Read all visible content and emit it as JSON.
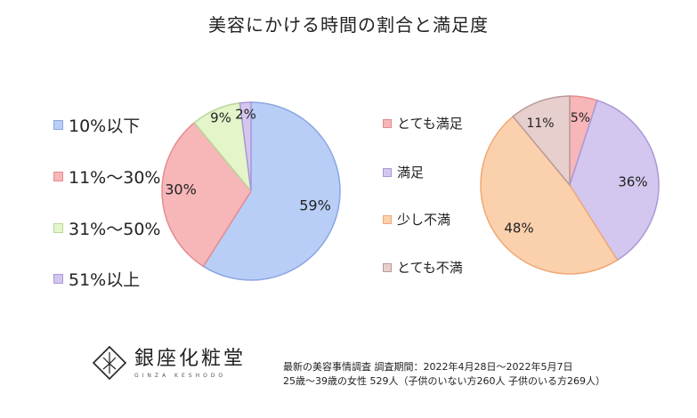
{
  "title": "美容にかける時間の割合と満足度",
  "chart_data": [
    {
      "type": "pie",
      "title": "美容にかける時間の割合",
      "categories": [
        "10%以下",
        "11%〜30%",
        "31%〜50%",
        "51%以上"
      ],
      "values": [
        59,
        30,
        9,
        2
      ],
      "labels": [
        "59%",
        "30%",
        "9%",
        "2%"
      ],
      "colors": [
        "#b9cef7",
        "#f7b6b8",
        "#e3f5c9",
        "#d3c7ef"
      ],
      "borders": [
        "#8aa6e2",
        "#e58c90",
        "#b9d59b",
        "#aa98d6"
      ]
    },
    {
      "type": "pie",
      "title": "満足度",
      "categories": [
        "とても満足",
        "満足",
        "少し不満",
        "とても不満"
      ],
      "values": [
        5,
        36,
        48,
        11
      ],
      "labels": [
        "5%",
        "36%",
        "48%",
        "11%"
      ],
      "colors": [
        "#f7b6b8",
        "#d3c7ef",
        "#fbd0ad",
        "#e6cfcd"
      ],
      "borders": [
        "#e58c90",
        "#aa98d6",
        "#f0a874",
        "#b89a98"
      ]
    }
  ],
  "logo": {
    "name": "銀座化粧堂",
    "sub": "GINZA KESHODO"
  },
  "footnote": {
    "line1": "最新の美容事情調査 調査期間：2022年4月28日〜2022年5月7日",
    "line2": "25歳〜39歳の女性 529人（子供のいない方260人 子供のいる方269人）"
  }
}
